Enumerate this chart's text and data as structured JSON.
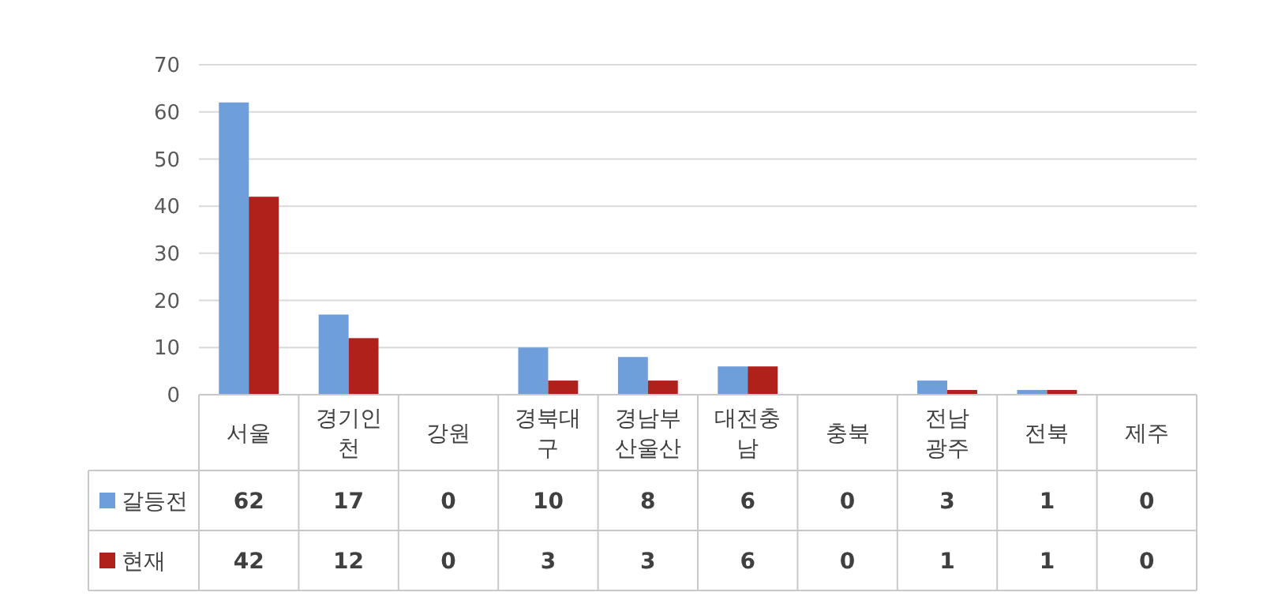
{
  "chart_data": {
    "type": "bar",
    "categories": [
      "서울",
      "경기인\n천",
      "강원",
      "경북대\n구",
      "경남부\n산울산",
      "대전충\n남",
      "충북",
      "전남\n광주",
      "전북",
      "제주"
    ],
    "series": [
      {
        "name": "갈등전",
        "color": "#6f9fda",
        "values": [
          62,
          17,
          0,
          10,
          8,
          6,
          0,
          3,
          1,
          0
        ]
      },
      {
        "name": "현재",
        "color": "#b0211c",
        "values": [
          42,
          12,
          0,
          3,
          3,
          6,
          0,
          1,
          1,
          0
        ]
      }
    ],
    "ylim": [
      0,
      70
    ],
    "yticks": [
      0,
      10,
      20,
      30,
      40,
      50,
      60,
      70
    ],
    "grid": "y",
    "legend": "bottom",
    "data_labels": true
  }
}
